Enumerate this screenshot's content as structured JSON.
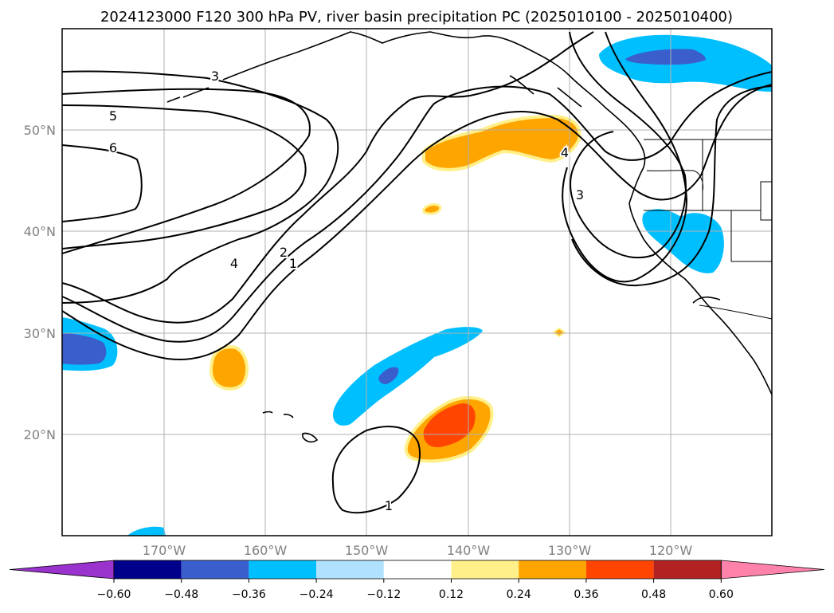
{
  "title": "2024123000 F120 300 hPa PV, river basin precipitation PC (2025010100 - 2025010400)",
  "map": {
    "lat_labels": [
      "50°N",
      "40°N",
      "30°N",
      "20°N"
    ],
    "lon_labels": [
      "170°W",
      "160°W",
      "150°W",
      "140°W",
      "130°W",
      "120°W"
    ],
    "pv_contour_labels": [
      "3",
      "5",
      "6",
      "4",
      "2",
      "1",
      "4",
      "3",
      "1"
    ]
  },
  "colorbar": {
    "colors": [
      "#9a32cd",
      "#00008b",
      "#3a5fcd",
      "#00bfff",
      "#b0e2ff",
      "#ffffff",
      "#fff08a",
      "#ffa500",
      "#ff4500",
      "#b22222",
      "#ff82ab"
    ],
    "tick_labels": [
      "−0.60",
      "−0.48",
      "−0.36",
      "−0.24",
      "−0.12",
      "0.12",
      "0.24",
      "0.36",
      "0.48",
      "0.60"
    ]
  }
}
